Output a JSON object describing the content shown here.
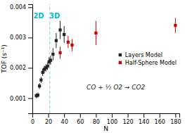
{
  "chart_data": {
    "type": "scatter",
    "x_label": "N",
    "y_label": "TOF (s⁻¹)",
    "xlim": [
      0,
      185
    ],
    "ylim": [
      0.0005,
      0.0041
    ],
    "xticks": [
      0,
      20,
      40,
      60,
      80,
      100,
      120,
      140,
      160,
      180
    ],
    "yticks": [
      0.001,
      0.002,
      0.003,
      0.004
    ],
    "legend": "right",
    "series": [
      {
        "name": "Layers Model",
        "color": "#222222",
        "marker": "square",
        "x": [
          5,
          7,
          9,
          11,
          13,
          15,
          17,
          19,
          21,
          23,
          26,
          30,
          35,
          40
        ],
        "values": [
          0.00108,
          0.0011,
          0.0014,
          0.0016,
          0.00185,
          0.00195,
          0.002,
          0.00205,
          0.0022,
          0.00225,
          0.00245,
          0.0029,
          0.00325,
          0.0031
        ],
        "error": [
          8e-05,
          8e-05,
          0.0001,
          0.0001,
          0.00012,
          0.00012,
          0.00012,
          0.00012,
          0.00015,
          0.00015,
          0.0002,
          0.00025,
          0.0003,
          0.00028
        ]
      },
      {
        "name": "Half-Sphere Model",
        "color": "#cc0000",
        "marker": "square",
        "x": [
          35,
          45,
          50,
          80,
          180
        ],
        "values": [
          0.0025,
          0.00285,
          0.00275,
          0.00315,
          0.0034
        ],
        "error_low": [
          0.0002,
          0.0002,
          0.0002,
          0.0004,
          0.00025
        ],
        "error_high": [
          0.0002,
          0.0002,
          0.0002,
          0.0004,
          0.00025
        ]
      }
    ],
    "reference_lines": [
      {
        "x": 22,
        "color": "#90c8e0",
        "line_style": "dashed"
      }
    ],
    "annotations": [
      {
        "text": "2D",
        "x": 8,
        "y": 0.0038,
        "color": "#00bcd4"
      },
      {
        "text": "3D",
        "x": 28,
        "y": 0.0038,
        "color": "#00bcd4"
      },
      {
        "text": "CO + ½ O2 → CO2",
        "x": 105,
        "y": 0.00135,
        "color": "#222222"
      }
    ]
  }
}
